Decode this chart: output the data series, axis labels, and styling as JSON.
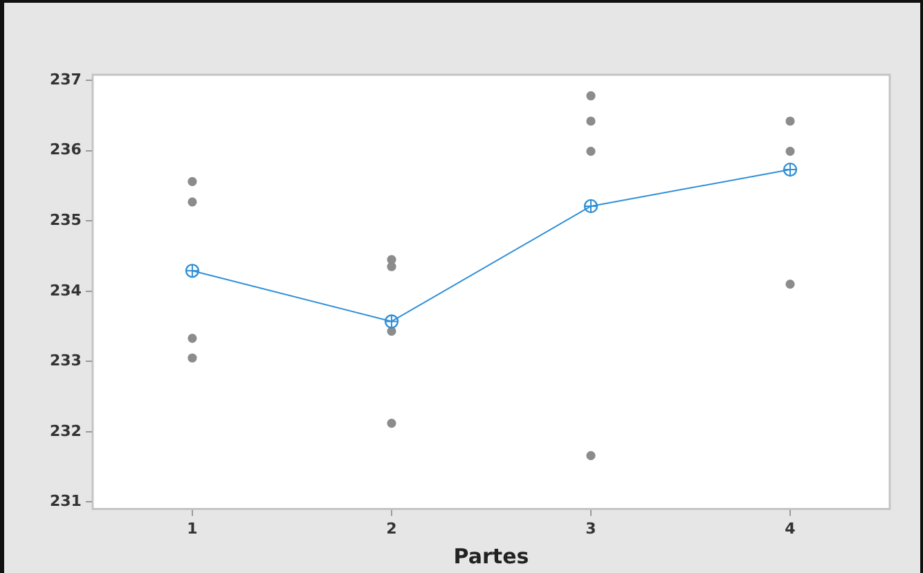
{
  "chart_data": {
    "type": "scatter",
    "xlabel": "Partes",
    "categories": [
      "1",
      "2",
      "3",
      "4"
    ],
    "ylim": [
      230.9,
      237.08
    ],
    "yticks": [
      231,
      232,
      233,
      234,
      235,
      236,
      237
    ],
    "grid": false,
    "legend": false,
    "series": [
      {
        "color": "#8c8c8c",
        "marker": "circle",
        "x": [
          "1",
          "1",
          "1",
          "1",
          "2",
          "2",
          "2",
          "2",
          "3",
          "3",
          "3",
          "3",
          "4",
          "4",
          "4"
        ],
        "values": [
          235.56,
          235.27,
          233.33,
          233.05,
          234.45,
          234.35,
          233.43,
          232.12,
          236.78,
          236.42,
          235.99,
          231.66,
          236.42,
          235.99,
          234.1
        ]
      },
      {
        "type": "line",
        "color": "#2f8fd8",
        "marker": "circle",
        "values": [
          234.29,
          233.57,
          235.21,
          235.73
        ]
      }
    ]
  }
}
